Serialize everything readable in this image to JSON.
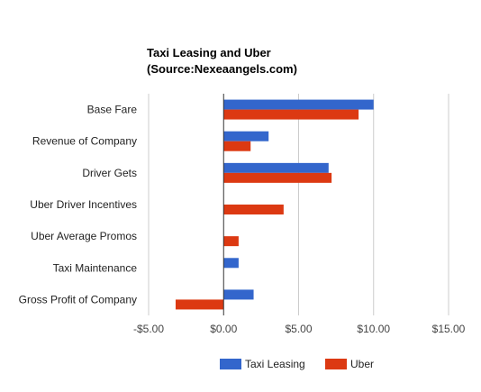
{
  "chart_data": {
    "type": "bar",
    "orientation": "horizontal",
    "title": [
      "Taxi Leasing and Uber",
      "(Source:Nexeaangels.com)"
    ],
    "categories": [
      "Base Fare",
      "Revenue of Company",
      "Driver Gets",
      "Uber Driver Incentives",
      "Uber Average Promos",
      "Taxi Maintenance",
      "Gross Profit of Company"
    ],
    "series": [
      {
        "name": "Taxi Leasing",
        "color": "#3366cc",
        "values": [
          10.0,
          3.0,
          7.0,
          null,
          null,
          1.0,
          2.0
        ]
      },
      {
        "name": "Uber",
        "color": "#dc3912",
        "values": [
          9.0,
          1.8,
          7.2,
          4.0,
          1.0,
          null,
          -3.2
        ]
      }
    ],
    "xlim": [
      -5,
      15
    ],
    "xticks": [
      -5,
      0,
      5,
      10,
      15
    ],
    "xtick_labels": [
      "-$5.00",
      "$0.00",
      "$5.00",
      "$10.00",
      "$15.00"
    ],
    "grid": true,
    "legend_position": "bottom"
  }
}
